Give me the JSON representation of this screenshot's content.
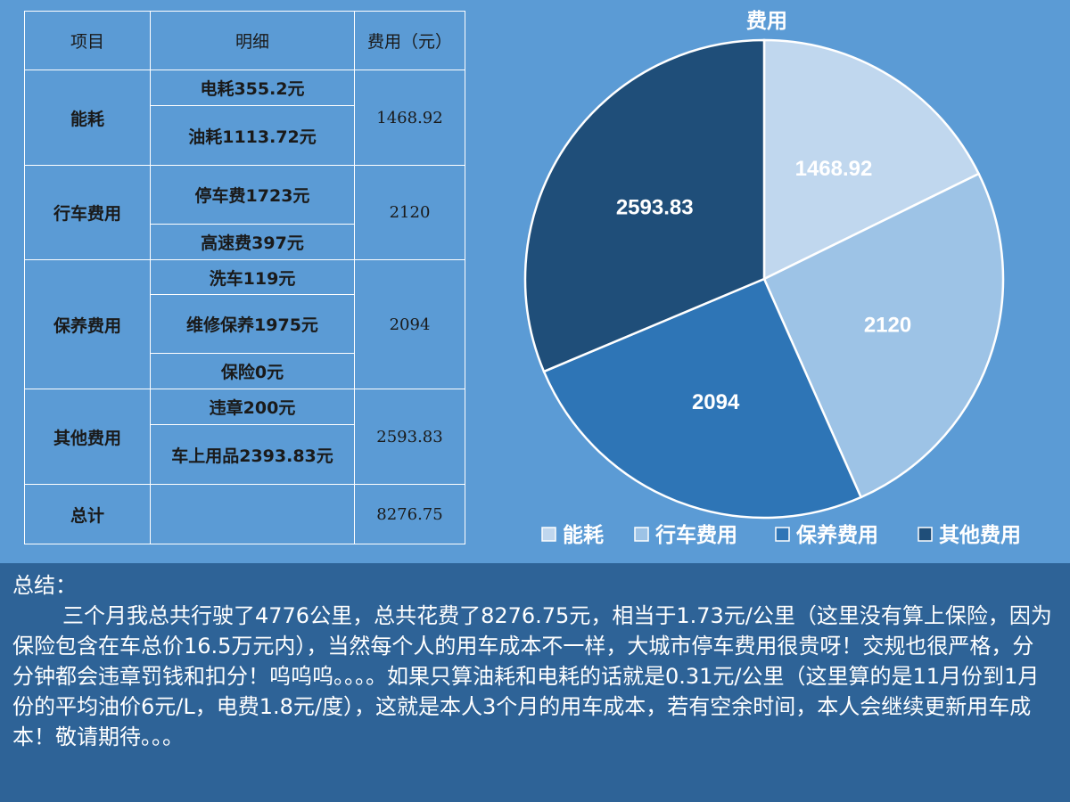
{
  "table": {
    "headers": [
      "项目",
      "明细",
      "费用（元）"
    ],
    "groups": [
      {
        "category": "能耗",
        "details": [
          "电耗355.2元",
          "油耗1113.72元"
        ],
        "total": "1468.92"
      },
      {
        "category": "行车费用",
        "details": [
          "停车费1723元",
          "高速费397元"
        ],
        "total": "2120"
      },
      {
        "category": "保养费用",
        "details": [
          "洗车119元",
          "维修保养1975元",
          "保险0元"
        ],
        "total": "2094"
      },
      {
        "category": "其他费用",
        "details": [
          "违章200元",
          "车上用品2393.83元"
        ],
        "total": "2593.83"
      }
    ],
    "sum_row": {
      "label": "总计",
      "detail": "",
      "total": "8276.75"
    }
  },
  "chart_data": {
    "type": "pie",
    "title": "费用",
    "categories": [
      "能耗",
      "行车费用",
      "保养费用",
      "其他费用"
    ],
    "values": [
      1468.92,
      2120,
      2094,
      2593.83
    ],
    "data_labels": [
      "1468.92",
      "2120",
      "2094",
      "2593.83"
    ],
    "colors": [
      "#c0d7ee",
      "#9dc3e6",
      "#2e75b6",
      "#1f4e79"
    ],
    "legend_position": "bottom"
  },
  "summary": {
    "title": "总结：",
    "text": "三个月我总共行驶了4776公里，总共花费了8276.75元，相当于1.73元/公里（这里没有算上保险，因为保险包含在车总价16.5万元内），当然每个人的用车成本不一样，大城市停车费用很贵呀！交规也很严格，分分钟都会违章罚钱和扣分！呜呜呜。。。。如果只算油耗和电耗的话就是0.31元/公里（这里算的是11月份到1月份的平均油价6元/L，电费1.8元/度），这就是本人3个月的用车成本，若有空余时间，本人会继续更新用车成本！敬请期待。。。"
  }
}
